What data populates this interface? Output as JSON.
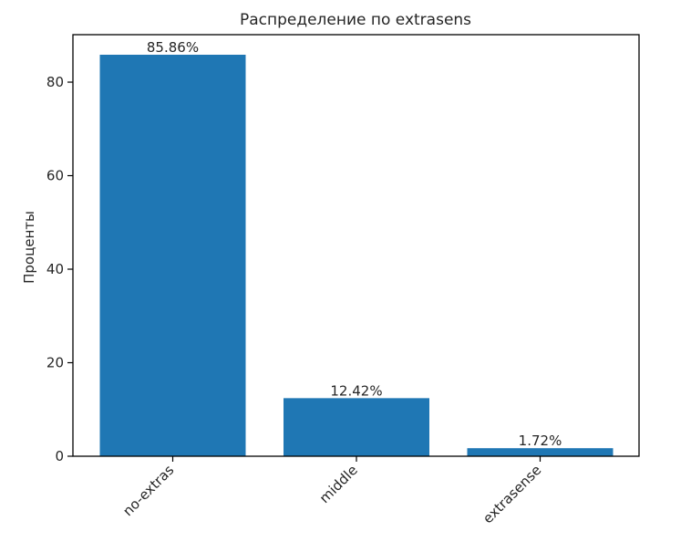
{
  "chart_data": {
    "type": "bar",
    "title": "Распределение по extrasens",
    "xlabel": "",
    "ylabel": "Проценты",
    "categories": [
      "no-extras",
      "middle",
      "extrasense"
    ],
    "values": [
      85.86,
      12.42,
      1.72
    ],
    "data_labels": [
      "85.86%",
      "12.42%",
      "1.72%"
    ],
    "ylim": [
      0,
      90.15
    ],
    "yticks": [
      0,
      20,
      40,
      60,
      80
    ],
    "ytick_labels": [
      "0",
      "20",
      "40",
      "60",
      "80"
    ],
    "bar_color": "#1f77b4",
    "grid": false,
    "legend": false
  }
}
